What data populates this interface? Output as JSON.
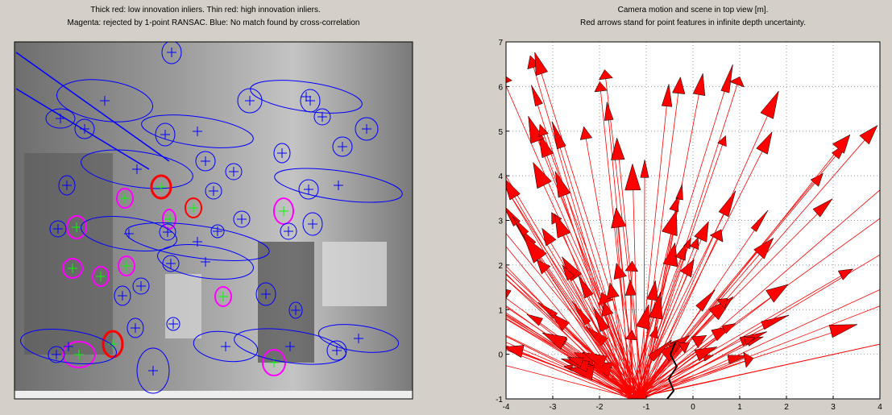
{
  "left_panel": {
    "title": [
      "Thick red: low innovation inliers. Thin red: high innovation inliers.",
      "Magenta: rejected by 1-point RANSAC. Blue: No match found by cross-correlation"
    ]
  },
  "right_panel": {
    "title": [
      "Camera motion and scene in top view [m].",
      "Red arrows stand for point features in infinite depth uncertainty."
    ],
    "xlim": [
      -4,
      4
    ],
    "ylim": [
      -1,
      7
    ],
    "xticks": [
      -4,
      -3,
      -2,
      -1,
      0,
      1,
      2,
      3,
      4
    ],
    "yticks": [
      -1,
      0,
      1,
      2,
      3,
      4,
      5,
      6,
      7
    ],
    "grid": true
  }
}
